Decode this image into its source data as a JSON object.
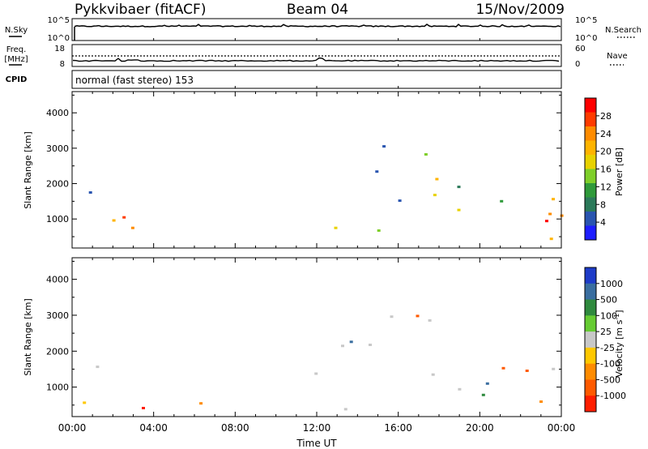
{
  "header": {
    "station": "Pykkvibaer (fitACF)",
    "beam": "Beam 04",
    "date": "15/Nov/2009"
  },
  "strips": {
    "nsky": {
      "label": "N.Sky",
      "left_ticks": [
        "10^5",
        "10^0"
      ],
      "right_label": "N.Search",
      "right_ticks": [
        "10^5",
        "10^0"
      ]
    },
    "freq": {
      "label_line1": "Freq.",
      "label_line2": "[MHz]",
      "left_ticks": [
        "18",
        "8"
      ],
      "right_label": "Nave",
      "right_ticks": [
        "60",
        "0"
      ]
    },
    "cpid": {
      "label": "CPID",
      "text": "normal (fast stereo) 153"
    }
  },
  "x_axis": {
    "label": "Time UT",
    "ticks": [
      "00:00",
      "04:00",
      "08:00",
      "12:00",
      "16:00",
      "20:00",
      "00:00"
    ]
  },
  "chart_data": [
    {
      "type": "heatmap",
      "title": "",
      "xlabel": "Time UT",
      "ylabel": "Slant Range [km]",
      "xlim": [
        0,
        24
      ],
      "ylim": [
        180,
        4600
      ],
      "yticks": [
        "1000",
        "2000",
        "3000",
        "4000"
      ],
      "colorbar": {
        "label": "Power [dB]",
        "ticks": [
          "28",
          "24",
          "20",
          "16",
          "12",
          "8",
          "4"
        ],
        "colors": [
          "#ff0000",
          "#ff3c00",
          "#ff8c00",
          "#ffb400",
          "#e8d200",
          "#7fcf2a",
          "#2f9a3a",
          "#2c7a5a",
          "#2a55b0",
          "#1e1eff"
        ]
      }
    },
    {
      "type": "heatmap",
      "title": "",
      "xlabel": "Time UT",
      "ylabel": "Slant Range [km]",
      "xlim": [
        0,
        24
      ],
      "ylim": [
        180,
        4600
      ],
      "yticks": [
        "1000",
        "2000",
        "3000",
        "4000"
      ],
      "colorbar": {
        "label_text": "Velocity",
        "label_units": "[m s",
        "label_exp": "-1",
        "label_close": "]",
        "ticks": [
          "1000",
          "500",
          "100",
          "25",
          "-25",
          "-100",
          "-500",
          "-1000"
        ],
        "colors": [
          "#1e3cc8",
          "#3a6ea0",
          "#2f8a3e",
          "#66cc33",
          "#c8c8c8",
          "#ffc800",
          "#ff8c00",
          "#ff5a00",
          "#ff1e00"
        ]
      }
    }
  ]
}
